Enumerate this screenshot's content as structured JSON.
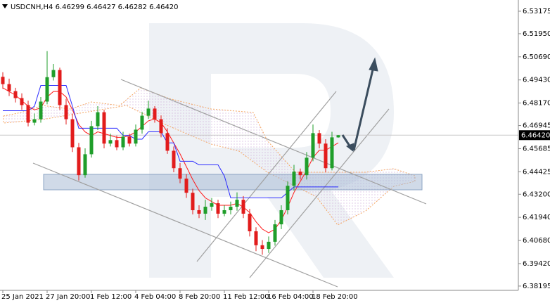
{
  "chart_data": {
    "type": "candlestick",
    "title": "USDCNH,H4  6.46299 6.46427 6.46282 6.46420",
    "categories": [
      "25 Jan 2021",
      null,
      null,
      null,
      null,
      null,
      null,
      "27 Jan 20:00",
      null,
      null,
      null,
      null,
      null,
      null,
      "1 Feb 12:00",
      null,
      null,
      null,
      null,
      null,
      null,
      "4 Feb 04:00",
      null,
      null,
      null,
      null,
      null,
      null,
      "8 Feb 20:00",
      null,
      null,
      null,
      null,
      null,
      null,
      "11 Feb 12:00",
      null,
      null,
      null,
      null,
      null,
      null,
      "16 Feb 04:00",
      null,
      null,
      null,
      null,
      null,
      null,
      "18 Feb 20:00",
      null,
      null,
      null,
      null
    ],
    "open": [
      6.496,
      6.492,
      6.4882,
      6.4844,
      6.4806,
      6.471,
      6.4729,
      6.4825,
      6.4958,
      6.4997,
      6.4806,
      6.4729,
      6.4576,
      6.4424,
      6.4538,
      6.4691,
      6.4767,
      6.4596,
      6.4615,
      6.4576,
      6.4634,
      6.4596,
      6.4672,
      6.4748,
      6.4787,
      6.4729,
      6.4653,
      6.4557,
      6.4462,
      6.4405,
      6.4328,
      6.4233,
      6.4214,
      6.4252,
      6.4271,
      6.4214,
      6.4233,
      6.4252,
      6.429,
      6.4214,
      6.4118,
      6.4042,
      6.4022,
      6.4061,
      6.4156,
      6.4233,
      6.4366,
      6.4443,
      6.4424,
      6.4519,
      6.4653,
      6.4596,
      6.4462,
      6.46299
    ],
    "high": [
      6.4985,
      6.495,
      6.49,
      6.487,
      6.483,
      6.476,
      6.485,
      6.51,
      6.503,
      6.501,
      6.484,
      6.476,
      6.46,
      6.457,
      6.472,
      6.48,
      6.478,
      6.465,
      6.464,
      6.466,
      6.465,
      6.47,
      6.477,
      6.483,
      6.48,
      6.475,
      6.468,
      6.458,
      6.449,
      6.443,
      6.435,
      6.426,
      6.429,
      6.43,
      6.429,
      6.426,
      6.428,
      6.433,
      6.431,
      6.424,
      6.414,
      6.407,
      6.409,
      6.418,
      6.426,
      6.439,
      6.448,
      6.446,
      6.455,
      6.47,
      6.467,
      6.462,
      6.466,
      6.46427
    ],
    "low": [
      6.4895,
      6.4855,
      6.482,
      6.478,
      6.469,
      6.4695,
      6.471,
      6.481,
      6.494,
      6.478,
      6.47,
      6.455,
      6.4395,
      6.441,
      6.452,
      6.467,
      6.457,
      6.458,
      6.456,
      6.456,
      6.458,
      6.458,
      6.465,
      6.473,
      6.471,
      6.463,
      6.454,
      6.444,
      6.438,
      6.43,
      6.421,
      6.419,
      6.418,
      6.423,
      6.419,
      6.42,
      6.421,
      6.423,
      6.419,
      6.409,
      6.401,
      6.399,
      6.4,
      6.404,
      6.413,
      6.421,
      6.434,
      6.44,
      6.44,
      6.45,
      6.457,
      6.444,
      6.445,
      6.46282
    ],
    "close": [
      6.492,
      6.4882,
      6.4844,
      6.4806,
      6.471,
      6.4729,
      6.4825,
      6.4958,
      6.4997,
      6.4806,
      6.4729,
      6.4576,
      6.4424,
      6.4538,
      6.4691,
      6.4767,
      6.4596,
      6.4615,
      6.4576,
      6.4634,
      6.4596,
      6.4672,
      6.4748,
      6.4787,
      6.4729,
      6.4653,
      6.4557,
      6.4462,
      6.4405,
      6.4328,
      6.4233,
      6.4214,
      6.4252,
      6.4271,
      6.4214,
      6.4233,
      6.4252,
      6.429,
      6.4214,
      6.4118,
      6.4042,
      6.4022,
      6.4061,
      6.4156,
      6.4233,
      6.4366,
      6.4443,
      6.4424,
      6.4519,
      6.4653,
      6.4596,
      6.4462,
      6.463,
      6.4642
    ],
    "up_color": "#1f9e2a",
    "down_color": "#e21c1c",
    "lines": [
      {
        "color": "#ff1a1a",
        "values": [
          6.49,
          6.488,
          6.486,
          6.483,
          6.48,
          6.478,
          6.479,
          6.485,
          6.488,
          6.488,
          6.485,
          6.478,
          6.47,
          6.466,
          6.464,
          6.466,
          6.465,
          6.464,
          6.463,
          6.463,
          6.464,
          6.466,
          6.469,
          6.472,
          6.473,
          6.471,
          6.466,
          6.46,
          6.454,
          6.447,
          6.44,
          6.434,
          6.43,
          6.428,
          6.426,
          6.426,
          6.426,
          6.427,
          6.425,
          6.422,
          6.417,
          6.413,
          6.411,
          6.413,
          6.418,
          6.425,
          6.433,
          6.439,
          6.445,
          6.452,
          6.456,
          6.456,
          6.458,
          6.46
        ]
      },
      {
        "color": "#2a2aff",
        "values": [
          6.4775,
          6.4775,
          6.4775,
          6.4775,
          6.4775,
          6.48,
          6.4913,
          6.4913,
          6.4913,
          6.4913,
          6.4913,
          6.48,
          6.468,
          6.468,
          6.468,
          6.468,
          6.468,
          6.468,
          6.468,
          6.464,
          6.464,
          6.462,
          6.462,
          6.466,
          6.466,
          6.466,
          6.46,
          6.46,
          6.45,
          6.45,
          6.45,
          6.448,
          6.448,
          6.448,
          6.448,
          6.442,
          6.43,
          6.43,
          6.43,
          6.43,
          6.43,
          6.43,
          6.43,
          6.43,
          6.43,
          6.433,
          6.436,
          6.436,
          6.436,
          6.436,
          6.436,
          6.436,
          6.436,
          6.436
        ]
      }
    ],
    "last_price": {
      "value": 6.4642,
      "label": "6.46420"
    },
    "ylim": [
      6.38,
      6.5371
    ],
    "yticks": [
      {
        "value": 6.53175,
        "label": "6.53175"
      },
      {
        "value": 6.5195,
        "label": "6.51950"
      },
      {
        "value": 6.5069,
        "label": "6.50690"
      },
      {
        "value": 6.4943,
        "label": "6.49430"
      },
      {
        "value": 6.4817,
        "label": "6.48170"
      },
      {
        "value": 6.46945,
        "label": "6.46945"
      },
      {
        "value": 6.45685,
        "label": "6.45685"
      },
      {
        "value": 6.44425,
        "label": "6.44425"
      },
      {
        "value": 6.432,
        "label": "6.43200"
      },
      {
        "value": 6.4194,
        "label": "6.41940"
      },
      {
        "value": 6.4068,
        "label": "6.40680"
      },
      {
        "value": 6.3942,
        "label": "6.39420"
      },
      {
        "value": 6.38195,
        "label": "6.38195"
      }
    ],
    "grid": false
  }
}
